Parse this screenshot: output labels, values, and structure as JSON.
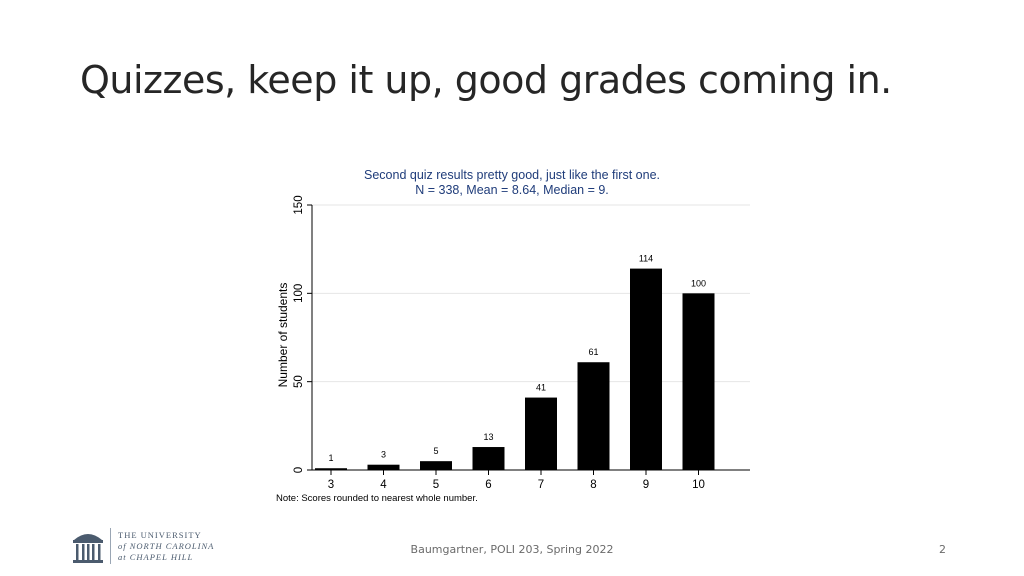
{
  "slide": {
    "title": "Quizzes, keep it up, good grades coming in.",
    "footer": "Baumgartner, POLI 203, Spring 2022",
    "page_number": "2"
  },
  "logo": {
    "line1": "THE UNIVERSITY",
    "line2": "of NORTH CAROLINA",
    "line3": "at CHAPEL HILL",
    "icon": "old-well-icon",
    "color": "#4b5b6e"
  },
  "chart_data": {
    "type": "bar",
    "title": "Second quiz results pretty good, just like the first one.",
    "subtitle": "N = 338, Mean = 8.64, Median = 9.",
    "title_color": "#1f3c7a",
    "xlabel": "",
    "ylabel": "Number of students",
    "categories": [
      "3",
      "4",
      "5",
      "6",
      "7",
      "8",
      "9",
      "10"
    ],
    "values": [
      1,
      3,
      5,
      13,
      41,
      61,
      114,
      100
    ],
    "data_labels": [
      "1",
      "3",
      "5",
      "13",
      "41",
      "61",
      "114",
      "100"
    ],
    "ylim": [
      0,
      150
    ],
    "yticks": [
      0,
      50,
      100,
      150
    ],
    "ytick_labels": [
      "0",
      "50",
      "100",
      "150"
    ],
    "bar_color": "#000000",
    "grid": true,
    "note": "Note: Scores rounded to nearest whole number."
  }
}
